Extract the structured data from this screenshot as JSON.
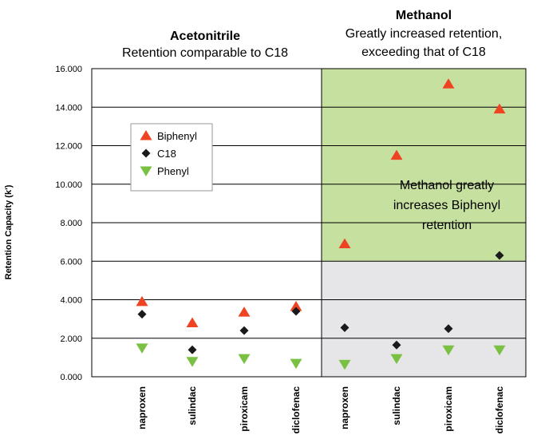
{
  "chart_data": {
    "type": "scatter",
    "ylabel": "Retention Capacity (k')",
    "ylim": [
      0,
      16
    ],
    "y_ticks": [
      "0.000",
      "2.000",
      "4.000",
      "6.000",
      "8.000",
      "10.000",
      "12.000",
      "14.000",
      "16.000"
    ],
    "categories": [
      "naproxen",
      "sulindac",
      "piroxicam",
      "diclofenac",
      "naproxen",
      "sulindac",
      "piroxicam",
      "diclofenac"
    ],
    "panels": [
      {
        "title": "Acetonitrile",
        "subtitle": "Retention comparable to C18"
      },
      {
        "title": "Methanol",
        "subtitle_lines": [
          "Greatly increased retention,",
          "exceeding that of C18"
        ]
      }
    ],
    "series": [
      {
        "name": "Biphenyl",
        "marker": "triangle-up",
        "color": "#ee4422",
        "values": [
          3.9,
          2.8,
          3.35,
          3.65,
          6.9,
          11.5,
          15.2,
          13.9
        ]
      },
      {
        "name": "C18",
        "marker": "diamond",
        "color": "#1a1a1a",
        "values": [
          3.25,
          1.4,
          2.4,
          3.4,
          2.55,
          1.65,
          2.5,
          6.3
        ]
      },
      {
        "name": "Phenyl",
        "marker": "triangle-down",
        "color": "#7ac143",
        "values": [
          1.5,
          0.8,
          0.95,
          0.7,
          0.65,
          0.95,
          1.4,
          1.4
        ]
      }
    ],
    "annotation_lines": [
      "Methanol greatly",
      "increases Biphenyl",
      "retention"
    ],
    "shading": [
      {
        "region": "methanol-upper",
        "y_from": 6,
        "y_to": 16,
        "color": "#c6e0a0"
      },
      {
        "region": "methanol-lower",
        "y_from": 0,
        "y_to": 6,
        "color": "#e6e6e8"
      }
    ],
    "grid": true,
    "legend_position": "top-left"
  }
}
